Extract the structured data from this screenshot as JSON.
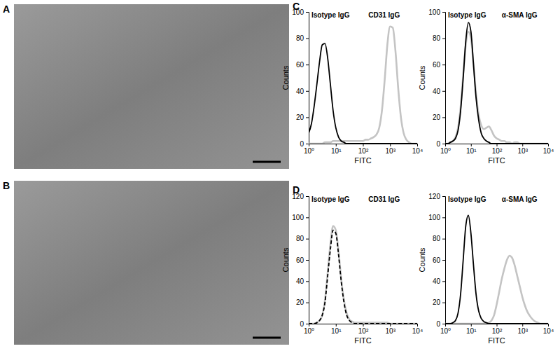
{
  "panels": [
    {
      "label": "A"
    },
    {
      "label": "B"
    },
    {
      "label": "C"
    },
    {
      "label": "D"
    }
  ],
  "chart_data": [
    {
      "type": "line",
      "log": "x",
      "x_label": "FITC",
      "y_label": "Counts",
      "xlim": [
        1,
        10000
      ],
      "xticks": [
        {
          "value": 1,
          "label": "10⁰"
        },
        {
          "value": 10,
          "label": "10¹"
        },
        {
          "value": 100,
          "label": "10²"
        },
        {
          "value": 1000,
          "label": "10³"
        },
        {
          "value": 10000,
          "label": "10⁴"
        }
      ],
      "ylim": [
        0,
        100
      ],
      "yticks": [
        0,
        20,
        40,
        60,
        80,
        100
      ],
      "x": [
        1,
        1.26,
        1.58,
        2,
        2.51,
        3.16,
        3.98,
        5.01,
        6.31,
        7.94,
        10,
        12.6,
        15.8,
        20,
        25.1,
        31.6,
        39.8,
        50.1,
        63.1,
        79.4,
        100,
        126,
        158,
        200,
        251,
        316,
        398,
        501,
        631,
        794,
        1000,
        1259,
        1585,
        1995,
        2512,
        3162,
        3981,
        5012,
        6310,
        7943,
        10000
      ],
      "series": [
        {
          "name": "Isotype IgG",
          "color": "#000000",
          "line_style": "solid",
          "values": [
            8,
            15,
            28,
            45,
            62,
            75,
            76,
            65,
            45,
            25,
            12,
            5,
            2,
            1,
            0,
            0,
            0,
            0,
            0,
            0,
            0,
            0,
            0,
            0,
            0,
            0,
            0,
            0,
            0,
            0,
            0,
            0,
            0,
            0,
            0,
            0,
            0,
            0,
            0,
            0,
            0
          ]
        },
        {
          "name": "CD31 IgG",
          "color": "#c4c4c4",
          "line_style": "solid",
          "values": [
            0,
            0,
            0,
            0,
            0,
            0,
            1,
            1,
            1,
            2,
            2,
            2,
            2,
            2,
            2,
            2,
            2,
            2,
            2,
            2,
            2,
            3,
            3,
            4,
            5,
            7,
            12,
            25,
            48,
            75,
            89,
            88,
            70,
            42,
            20,
            8,
            3,
            1,
            0,
            0,
            0
          ]
        }
      ]
    },
    {
      "type": "line",
      "log": "x",
      "x_label": "FITC",
      "y_label": "Counts",
      "xlim": [
        1,
        10000
      ],
      "xticks": [
        {
          "value": 1,
          "label": "10⁰"
        },
        {
          "value": 10,
          "label": "10¹"
        },
        {
          "value": 100,
          "label": "10²"
        },
        {
          "value": 1000,
          "label": "10³"
        },
        {
          "value": 10000,
          "label": "10⁴"
        }
      ],
      "ylim": [
        0,
        100
      ],
      "yticks": [
        0,
        20,
        40,
        60,
        80,
        100
      ],
      "x": [
        1,
        1.26,
        1.58,
        2,
        2.51,
        3.16,
        3.98,
        5.01,
        6.31,
        7.94,
        10,
        12.6,
        15.8,
        20,
        25.1,
        31.6,
        39.8,
        50.1,
        63.1,
        79.4,
        100,
        126,
        158,
        200,
        251,
        316,
        398,
        501,
        631,
        794,
        1000,
        1259,
        1585,
        1995,
        2512,
        3162,
        3981,
        5012,
        6310,
        7943,
        10000
      ],
      "series": [
        {
          "name": "Isotype IgG",
          "color": "#000000",
          "line_style": "solid",
          "values": [
            0,
            0,
            1,
            2,
            4,
            10,
            25,
            50,
            78,
            92,
            85,
            60,
            35,
            18,
            8,
            4,
            2,
            1,
            0,
            0,
            0,
            0,
            0,
            0,
            0,
            0,
            0,
            0,
            0,
            0,
            0,
            0,
            0,
            0,
            0,
            0,
            0,
            0,
            0,
            0,
            0
          ]
        },
        {
          "name": "α-SMA IgG",
          "color": "#c4c4c4",
          "line_style": "solid",
          "values": [
            0,
            0,
            1,
            2,
            5,
            12,
            28,
            52,
            75,
            85,
            80,
            60,
            38,
            22,
            14,
            11,
            12,
            13,
            10,
            6,
            4,
            3,
            2,
            2,
            1,
            1,
            0,
            1,
            1,
            0,
            0,
            0,
            0,
            0,
            0,
            0,
            0,
            0,
            0,
            0,
            0
          ]
        }
      ]
    },
    {
      "type": "line",
      "log": "x",
      "x_label": "FITC",
      "y_label": "Counts",
      "xlim": [
        1,
        10000
      ],
      "xticks": [
        {
          "value": 1,
          "label": "10⁰"
        },
        {
          "value": 10,
          "label": "10¹"
        },
        {
          "value": 100,
          "label": "10²"
        },
        {
          "value": 1000,
          "label": "10³"
        },
        {
          "value": 10000,
          "label": "10⁴"
        }
      ],
      "ylim": [
        0,
        120
      ],
      "yticks": [
        0,
        20,
        40,
        60,
        80,
        100,
        120
      ],
      "x": [
        1,
        1.26,
        1.58,
        2,
        2.51,
        3.16,
        3.98,
        5.01,
        6.31,
        7.94,
        10,
        12.6,
        15.8,
        20,
        25.1,
        31.6,
        39.8,
        50.1,
        63.1,
        79.4,
        100,
        126,
        158,
        200,
        251,
        316,
        398,
        501,
        631,
        794,
        1000,
        1259,
        1585,
        1995,
        2512,
        3162,
        3981,
        5012,
        6310,
        7943,
        10000
      ],
      "series": [
        {
          "name": "Isotype IgG",
          "color": "#000000",
          "line_style": "dashed",
          "values": [
            0,
            0,
            0,
            1,
            3,
            8,
            20,
            45,
            70,
            88,
            85,
            65,
            40,
            20,
            8,
            3,
            1,
            0,
            0,
            0,
            0,
            0,
            0,
            0,
            0,
            0,
            0,
            0,
            0,
            0,
            0,
            0,
            0,
            0,
            0,
            0,
            0,
            0,
            0,
            0,
            0
          ]
        },
        {
          "name": "CD31 IgG",
          "color": "#c4c4c4",
          "line_style": "solid",
          "values": [
            0,
            0,
            0,
            1,
            3,
            8,
            22,
            48,
            75,
            92,
            88,
            68,
            42,
            22,
            10,
            4,
            2,
            1,
            1,
            1,
            1,
            1,
            1,
            1,
            1,
            1,
            1,
            1,
            1,
            1,
            0,
            0,
            0,
            0,
            0,
            0,
            0,
            0,
            0,
            0,
            0
          ]
        }
      ]
    },
    {
      "type": "line",
      "log": "x",
      "x_label": "FITC",
      "y_label": "Counts",
      "xlim": [
        1,
        10000
      ],
      "xticks": [
        {
          "value": 1,
          "label": "10⁰"
        },
        {
          "value": 10,
          "label": "10¹"
        },
        {
          "value": 100,
          "label": "10²"
        },
        {
          "value": 1000,
          "label": "10³"
        },
        {
          "value": 10000,
          "label": "10⁴"
        }
      ],
      "ylim": [
        0,
        120
      ],
      "yticks": [
        0,
        20,
        40,
        60,
        80,
        100,
        120
      ],
      "x": [
        1,
        1.26,
        1.58,
        2,
        2.51,
        3.16,
        3.98,
        5.01,
        6.31,
        7.94,
        10,
        12.6,
        15.8,
        20,
        25.1,
        31.6,
        39.8,
        50.1,
        63.1,
        79.4,
        100,
        126,
        158,
        200,
        251,
        316,
        398,
        501,
        631,
        794,
        1000,
        1259,
        1585,
        1995,
        2512,
        3162,
        3981,
        5012,
        6310,
        7943,
        10000
      ],
      "series": [
        {
          "name": "Isotype IgG",
          "color": "#000000",
          "line_style": "solid",
          "values": [
            0,
            0,
            0,
            1,
            3,
            10,
            28,
            60,
            92,
            102,
            85,
            55,
            28,
            12,
            5,
            2,
            1,
            0,
            0,
            0,
            0,
            0,
            0,
            0,
            0,
            0,
            0,
            0,
            0,
            0,
            0,
            0,
            0,
            0,
            0,
            0,
            0,
            0,
            0,
            0,
            0
          ]
        },
        {
          "name": "α-SMA IgG",
          "color": "#c4c4c4",
          "line_style": "solid",
          "values": [
            0,
            0,
            0,
            0,
            0,
            0,
            0,
            0,
            0,
            0,
            0,
            0,
            0,
            0,
            0,
            0,
            0,
            1,
            3,
            8,
            18,
            30,
            42,
            52,
            60,
            64,
            62,
            55,
            45,
            35,
            25,
            17,
            11,
            7,
            4,
            2,
            1,
            0,
            0,
            0,
            0
          ]
        }
      ]
    }
  ]
}
